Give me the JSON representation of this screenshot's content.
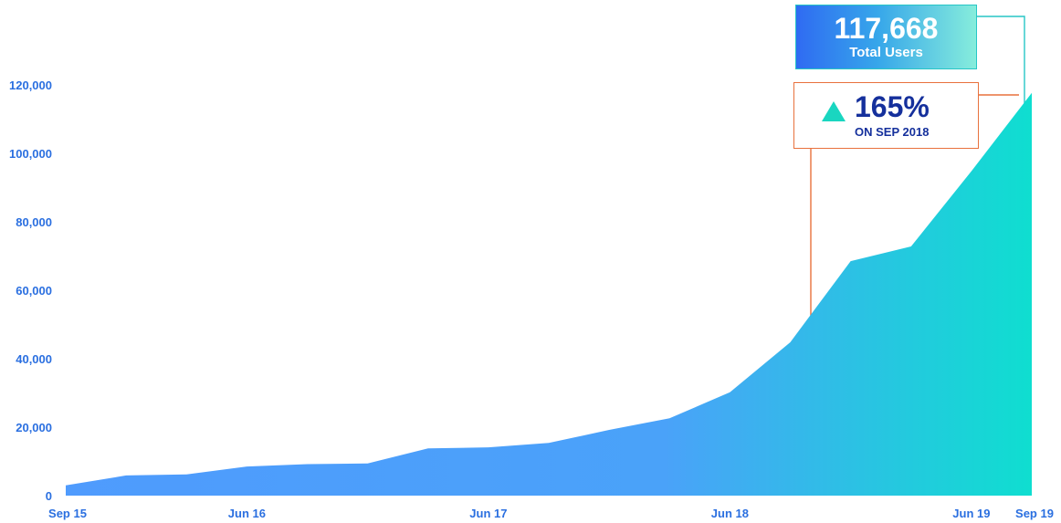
{
  "chart_data": {
    "type": "area",
    "title": "",
    "xlabel": "",
    "ylabel": "",
    "ylim": [
      0,
      120000
    ],
    "grid": false,
    "y_ticks": [
      0,
      20000,
      40000,
      60000,
      80000,
      100000,
      120000
    ],
    "y_tick_labels": [
      "0",
      "20,000",
      "40,000",
      "60,000",
      "80,000",
      "100,000",
      "120,000"
    ],
    "x_tick_labels": [
      "Sep 15",
      "Jun 16",
      "Jun 17",
      "Jun 18",
      "Jun 19",
      "Sep 19"
    ],
    "x_tick_months": [
      0,
      9,
      21,
      33,
      45,
      48
    ],
    "x_range_months": [
      0,
      48
    ],
    "series": [
      {
        "months": [
          0,
          3,
          6,
          9,
          12,
          15,
          18,
          21,
          24,
          27,
          30,
          33,
          36,
          39,
          42,
          45,
          48
        ],
        "values": [
          3000,
          5900,
          6200,
          8500,
          9200,
          9400,
          13800,
          14100,
          15400,
          19200,
          22600,
          30200,
          44800,
          68500,
          72800,
          94800,
          117668
        ]
      }
    ],
    "colors": {
      "area_bottom": "#4f9bfd",
      "area_top": "#0fded0",
      "axis_text": "#2a6fe0",
      "total_callout_border": "#27c6c6",
      "growth_callout_border": "#e8713d"
    }
  },
  "callouts": {
    "total": {
      "value": "117,668",
      "label": "Total Users"
    },
    "growth": {
      "icon": "up-triangle-icon",
      "value": "165%",
      "label": "ON SEP 2018"
    }
  }
}
